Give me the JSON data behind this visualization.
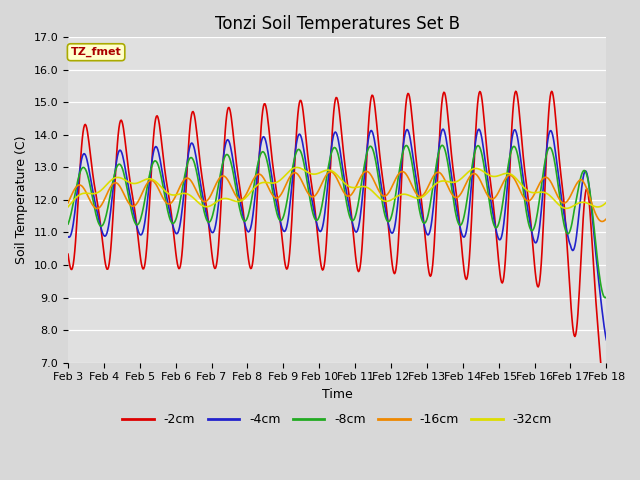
{
  "title": "Tonzi Soil Temperatures Set B",
  "xlabel": "Time",
  "ylabel": "Soil Temperature (C)",
  "annotation_text": "TZ_fmet",
  "ylim": [
    7.0,
    17.0
  ],
  "yticks": [
    7.0,
    8.0,
    9.0,
    10.0,
    11.0,
    12.0,
    13.0,
    14.0,
    15.0,
    16.0,
    17.0
  ],
  "xlim": [
    0,
    15
  ],
  "xtick_labels": [
    "Feb 3",
    "Feb 4",
    "Feb 5",
    "Feb 6",
    "Feb 7",
    "Feb 8",
    "Feb 9",
    "Feb 10",
    "Feb 11",
    "Feb 12",
    "Feb 13",
    "Feb 14",
    "Feb 15",
    "Feb 16",
    "Feb 17",
    "Feb 18"
  ],
  "xtick_positions": [
    0,
    1,
    2,
    3,
    4,
    5,
    6,
    7,
    8,
    9,
    10,
    11,
    12,
    13,
    14,
    15
  ],
  "series": {
    "-2cm": {
      "color": "#dd0000",
      "lw": 1.2
    },
    "-4cm": {
      "color": "#2222cc",
      "lw": 1.2
    },
    "-8cm": {
      "color": "#22aa22",
      "lw": 1.2
    },
    "-16cm": {
      "color": "#ee8800",
      "lw": 1.2
    },
    "-32cm": {
      "color": "#dddd00",
      "lw": 1.2
    }
  },
  "bg_color": "#e0e0e0",
  "grid_color": "#ffffff",
  "title_fontsize": 12,
  "label_fontsize": 9,
  "tick_fontsize": 8
}
